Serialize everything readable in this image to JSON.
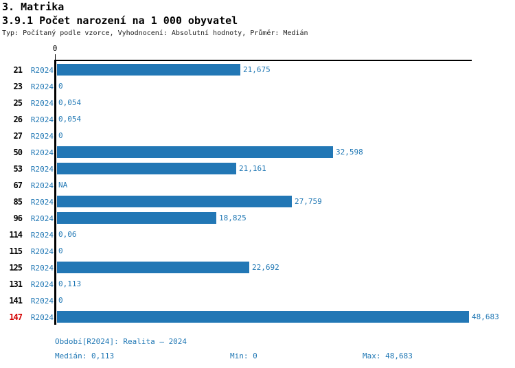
{
  "header": {
    "title": "3. Matrika",
    "subtitle": "3.9.1 Počet narození na 1 000 obyvatel",
    "meta": "Typ: Počítaný podle vzorce, Vyhodnocení: Absolutní hodnoty, Průměr: Medián"
  },
  "chart_data": {
    "type": "bar",
    "orientation": "horizontal",
    "xlabel": "",
    "ylabel": "",
    "xlim": [
      0,
      48.683
    ],
    "axis_zero_tick_label": "0",
    "bar_color": "#2277b5",
    "value_text_color": "#1f77b4",
    "highlight_color": "#d40000",
    "series_name": "R2024",
    "rows": [
      {
        "id": "21",
        "period": "R2024",
        "value": 21.675,
        "value_label": "21,675",
        "highlight": false
      },
      {
        "id": "23",
        "period": "R2024",
        "value": 0,
        "value_label": "0",
        "highlight": false
      },
      {
        "id": "25",
        "period": "R2024",
        "value": 0.054,
        "value_label": "0,054",
        "highlight": false
      },
      {
        "id": "26",
        "period": "R2024",
        "value": 0.054,
        "value_label": "0,054",
        "highlight": false
      },
      {
        "id": "27",
        "period": "R2024",
        "value": 0,
        "value_label": "0",
        "highlight": false
      },
      {
        "id": "50",
        "period": "R2024",
        "value": 32.598,
        "value_label": "32,598",
        "highlight": false
      },
      {
        "id": "53",
        "period": "R2024",
        "value": 21.161,
        "value_label": "21,161",
        "highlight": false
      },
      {
        "id": "67",
        "period": "R2024",
        "value": null,
        "value_label": "NA",
        "highlight": false
      },
      {
        "id": "85",
        "period": "R2024",
        "value": 27.759,
        "value_label": "27,759",
        "highlight": false
      },
      {
        "id": "96",
        "period": "R2024",
        "value": 18.825,
        "value_label": "18,825",
        "highlight": false
      },
      {
        "id": "114",
        "period": "R2024",
        "value": 0.06,
        "value_label": "0,06",
        "highlight": false
      },
      {
        "id": "115",
        "period": "R2024",
        "value": 0,
        "value_label": "0",
        "highlight": false
      },
      {
        "id": "125",
        "period": "R2024",
        "value": 22.692,
        "value_label": "22,692",
        "highlight": false
      },
      {
        "id": "131",
        "period": "R2024",
        "value": 0.113,
        "value_label": "0,113",
        "highlight": false
      },
      {
        "id": "141",
        "period": "R2024",
        "value": 0,
        "value_label": "0",
        "highlight": false
      },
      {
        "id": "147",
        "period": "R2024",
        "value": 48.683,
        "value_label": "48,683",
        "highlight": true
      }
    ]
  },
  "footer": {
    "period_info": "Období[R2024]: Realita – 2024",
    "median_label": "Medián: 0,113",
    "min_label": "Min: 0",
    "max_label": "Max: 48,683"
  }
}
